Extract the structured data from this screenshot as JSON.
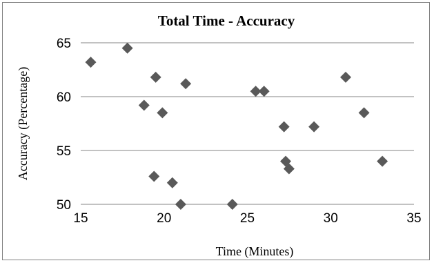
{
  "chart_data": {
    "type": "scatter",
    "title": "Total Time - Accuracy",
    "xlabel": "Time (Minutes)",
    "ylabel": "Accuracy (Percentage)",
    "xlim": [
      15,
      35
    ],
    "ylim": [
      50,
      65
    ],
    "xticks": [
      15,
      20,
      25,
      30,
      35
    ],
    "yticks": [
      50,
      55,
      60,
      65
    ],
    "grid": "horizontal",
    "legend": "none",
    "marker": "diamond",
    "marker_color": "#595959",
    "gridline_color": "#868686",
    "series": [
      {
        "points": [
          {
            "x": 15.6,
            "y": 63.2
          },
          {
            "x": 17.8,
            "y": 64.5
          },
          {
            "x": 18.8,
            "y": 59.2
          },
          {
            "x": 19.5,
            "y": 61.8
          },
          {
            "x": 19.9,
            "y": 58.5
          },
          {
            "x": 21.3,
            "y": 61.2
          },
          {
            "x": 19.4,
            "y": 52.6
          },
          {
            "x": 20.5,
            "y": 52.0
          },
          {
            "x": 21.0,
            "y": 50.0
          },
          {
            "x": 24.1,
            "y": 50.0
          },
          {
            "x": 25.5,
            "y": 60.5
          },
          {
            "x": 26.0,
            "y": 60.5
          },
          {
            "x": 27.2,
            "y": 57.2
          },
          {
            "x": 27.3,
            "y": 54.0
          },
          {
            "x": 27.5,
            "y": 53.3
          },
          {
            "x": 29.0,
            "y": 57.2
          },
          {
            "x": 30.9,
            "y": 61.8
          },
          {
            "x": 32.0,
            "y": 58.5
          },
          {
            "x": 33.1,
            "y": 54.0
          }
        ]
      }
    ]
  }
}
